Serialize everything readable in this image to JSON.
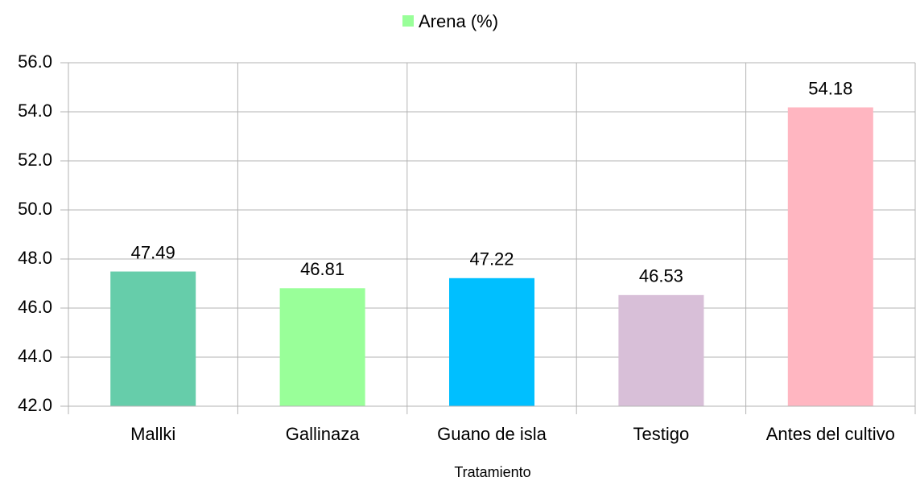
{
  "chart_data": {
    "type": "bar",
    "categories": [
      "Mallki",
      "Gallinaza",
      "Guano de isla",
      "Testigo",
      "Antes del cultivo"
    ],
    "series": [
      {
        "name": "Arena (%)",
        "color": "#99ff99",
        "colors": [
          "#66cdaa",
          "#99ff99",
          "#00bfff",
          "#d8bfd8",
          "#ffb6c1"
        ],
        "values": [
          47.49,
          46.81,
          47.22,
          46.53,
          54.18
        ]
      }
    ],
    "xlabel": "Tratamiento",
    "ylim": [
      42,
      56
    ],
    "yticks": [
      {
        "value": 42,
        "label": "42.0"
      },
      {
        "value": 44,
        "label": "44.0"
      },
      {
        "value": 46,
        "label": "46.0"
      },
      {
        "value": 48,
        "label": "48.0"
      },
      {
        "value": 50,
        "label": "50.0"
      },
      {
        "value": 52,
        "label": "52.0"
      },
      {
        "value": 54,
        "label": "54.0"
      },
      {
        "value": 56,
        "label": "56.0"
      }
    ],
    "grid": true,
    "legend": "top"
  }
}
